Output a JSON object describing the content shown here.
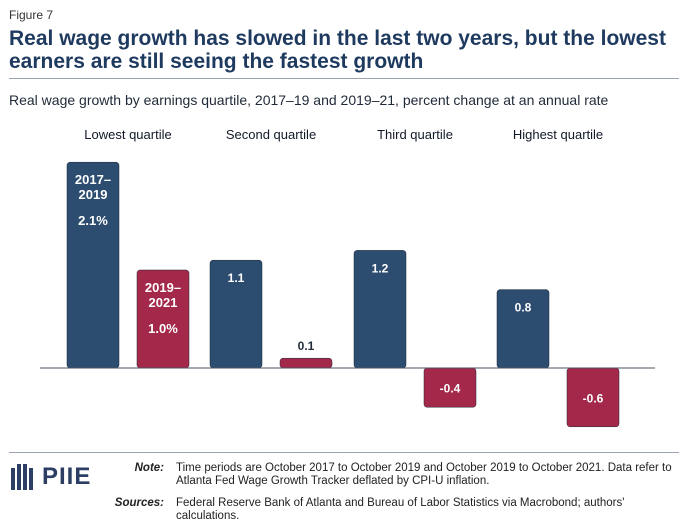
{
  "figure_label": "Figure 7",
  "title": "Real wage growth has slowed in the last two years, but the lowest earners are still seeing the fastest growth",
  "subtitle": "Real wage growth by earnings quartile, 2017–19 and 2019–21, percent change at an annual rate",
  "colors": {
    "series_2017_2019": "#2c4c70",
    "series_2019_2021": "#a3284a",
    "label_inside": "#ffffff",
    "label_outside": "#1f2937",
    "baseline": "#4b5563"
  },
  "chart_data": {
    "type": "bar",
    "title": "Real wage growth by earnings quartile, 2017–19 and 2019–21, percent change at an annual rate",
    "categories": [
      "Lowest quartile",
      "Second quartile",
      "Third quartile",
      "Highest quartile"
    ],
    "series": [
      {
        "name": "2017–2019",
        "values": [
          2.1,
          1.1,
          1.2,
          0.8
        ],
        "value_labels": [
          "2.1%",
          "1.1",
          "1.2",
          "0.8"
        ]
      },
      {
        "name": "2019–2021",
        "values": [
          1.0,
          0.1,
          -0.4,
          -0.6
        ],
        "value_labels": [
          "1.0%",
          "0.1",
          "-0.4",
          "-0.6"
        ]
      }
    ],
    "inline_series_labels": [
      {
        "series": 0,
        "category": 0,
        "lines": [
          "2017–",
          "2019"
        ]
      },
      {
        "series": 1,
        "category": 0,
        "lines": [
          "2019–",
          "2021"
        ]
      }
    ],
    "ylim": [
      -0.6,
      2.1
    ],
    "xlabel": "",
    "ylabel": "",
    "grid": false,
    "legend": "inline"
  },
  "logo_text": "PIIE",
  "note": {
    "label": "Note:",
    "text": "Time periods are October 2017 to October 2019 and October 2019 to October 2021. Data refer to Atlanta Fed Wage Growth Tracker deflated by CPI-U inflation."
  },
  "sources": {
    "label": "Sources:",
    "text": "Federal Reserve Bank of Atlanta and Bureau of Labor Statistics via Macrobond; authors' calculations."
  }
}
